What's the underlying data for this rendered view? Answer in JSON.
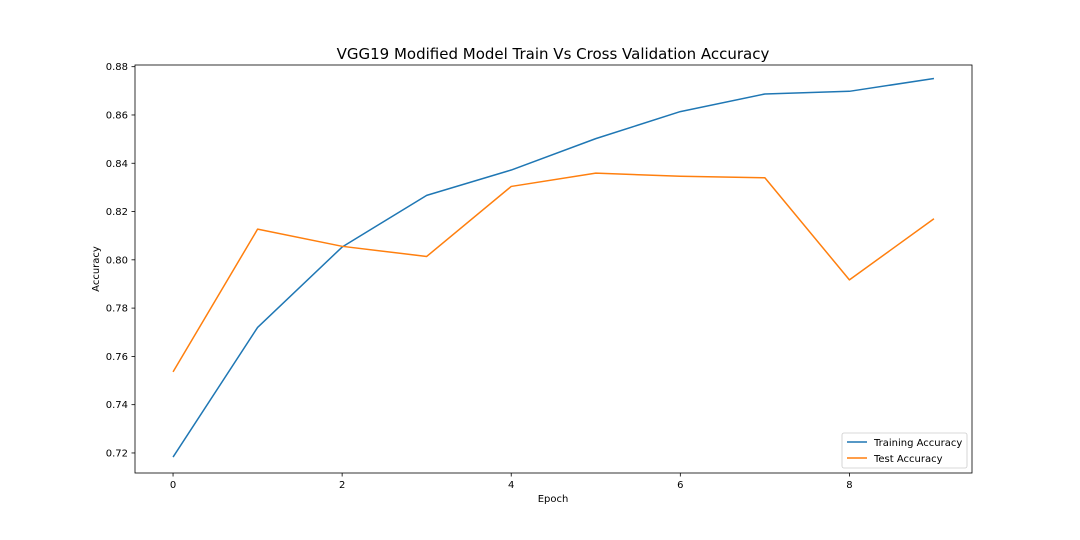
{
  "chart_data": {
    "type": "line",
    "title": "VGG19 Modified Model Train Vs Cross Validation Accuracy",
    "xlabel": "Epoch",
    "ylabel": "Accuracy",
    "x": [
      0,
      1,
      2,
      3,
      4,
      5,
      6,
      7,
      8,
      9
    ],
    "xlim": [
      -0.45,
      9.45
    ],
    "ylim": [
      0.7117,
      0.8807
    ],
    "x_ticks": [
      0,
      2,
      4,
      6,
      8
    ],
    "x_tick_labels": [
      "0",
      "2",
      "4",
      "6",
      "8"
    ],
    "y_ticks": [
      0.72,
      0.74,
      0.76,
      0.78,
      0.8,
      0.82,
      0.84,
      0.86,
      0.88
    ],
    "y_tick_labels": [
      "0.72",
      "0.74",
      "0.76",
      "0.78",
      "0.80",
      "0.82",
      "0.84",
      "0.86",
      "0.88"
    ],
    "grid": false,
    "legend_position": "lower-right",
    "series": [
      {
        "name": "Training Accuracy",
        "color": "#1f77b4",
        "values": [
          0.7183,
          0.772,
          0.8053,
          0.8267,
          0.8372,
          0.8502,
          0.8614,
          0.8687,
          0.8698,
          0.8751
        ]
      },
      {
        "name": "Test Accuracy",
        "color": "#ff7f0e",
        "values": [
          0.7536,
          0.8127,
          0.8056,
          0.8014,
          0.8304,
          0.8359,
          0.8346,
          0.834,
          0.7917,
          0.817
        ]
      }
    ]
  }
}
